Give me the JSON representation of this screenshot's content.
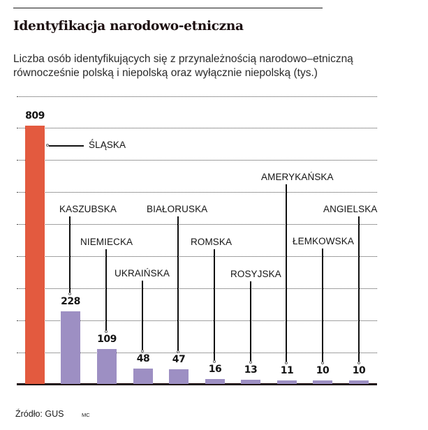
{
  "header": {
    "title": "Identyfikacja narodowo-etniczna",
    "subtitle_line1": "Liczba osób identyfikujących się z przynależnością narodowo–etniczną",
    "subtitle_line2": "równocześnie polską i niepolską oraz wyłącznie niepolską (tys.)"
  },
  "footer": {
    "source": "Źródło: GUS",
    "credit": "MC"
  },
  "colors": {
    "highlight_bar": "#e35a3f",
    "bar": "#9d8fc3",
    "baseline": "#1e0a0e"
  },
  "chart_data": {
    "type": "bar",
    "title": "Identyfikacja narodowo-etniczna",
    "subtitle": "Liczba osób identyfikujących się z przynależnością narodowo–etniczną równocześnie polską i niepolską oraz wyłącznie niepolską (tys.)",
    "xlabel": "",
    "ylabel": "tys.",
    "categories": [
      "ŚLĄSKA",
      "KASZUBSKA",
      "NIEMIECKA",
      "UKRAIŃSKA",
      "BIAŁORUSKA",
      "ROMSKA",
      "ROSYJSKA",
      "AMERYKAŃSKA",
      "ŁEMKOWSKA",
      "ANGIELSKA"
    ],
    "values": [
      809,
      228,
      109,
      48,
      47,
      16,
      13,
      11,
      10,
      10
    ],
    "value_labels": [
      "809",
      "228",
      "109",
      "48",
      "47",
      "16",
      "13",
      "11",
      "10",
      "10"
    ],
    "highlighted_index": 0,
    "ylim": [
      0,
      900
    ],
    "grid": "dotted horizontal",
    "legend": "none (categories labeled via leader lines)",
    "source": "Źródło: GUS"
  }
}
